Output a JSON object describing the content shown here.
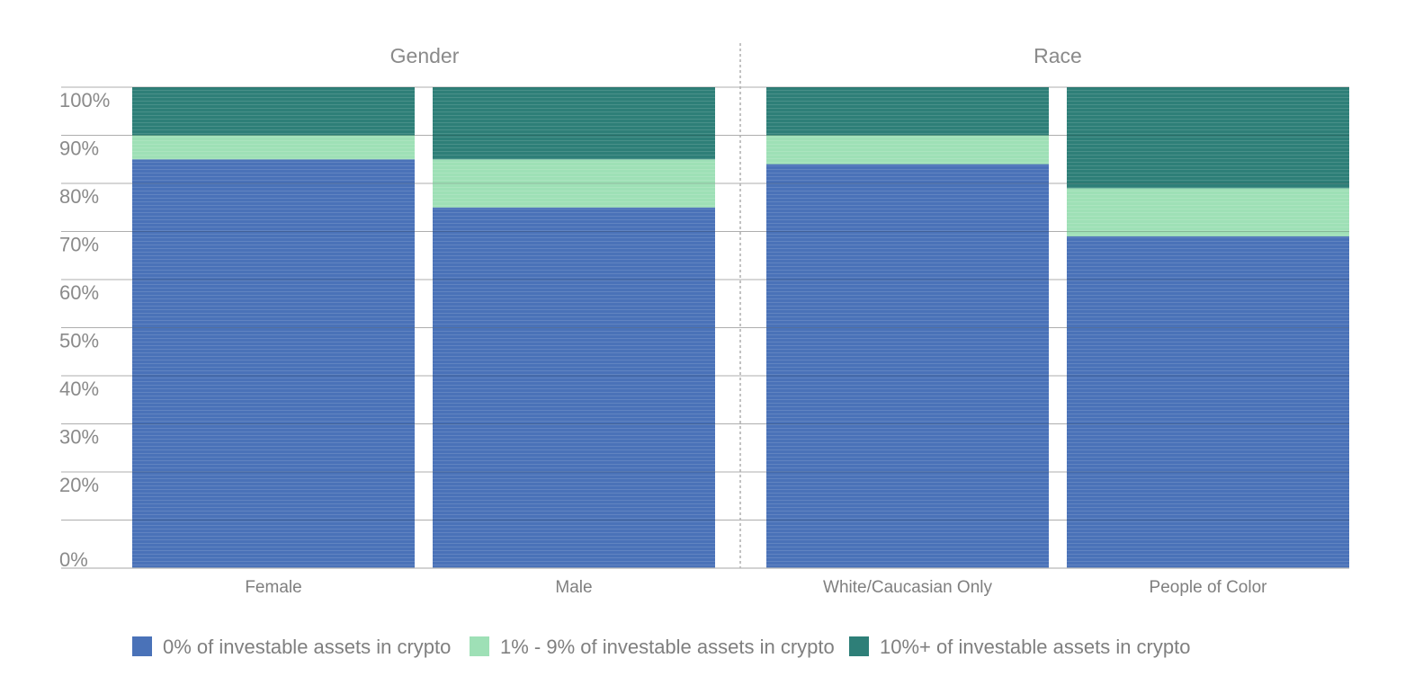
{
  "chart_data": {
    "type": "bar",
    "stacked": true,
    "groups": [
      {
        "label": "Gender",
        "categories": [
          "Female",
          "Male"
        ]
      },
      {
        "label": "Race",
        "categories": [
          "White/Caucasian Only",
          "People of Color"
        ]
      }
    ],
    "categories": [
      "Female",
      "Male",
      "White/Caucasian Only",
      "People of Color"
    ],
    "series": [
      {
        "name": "0% of investable assets in crypto",
        "color": "#4a72b8",
        "values": [
          85,
          75,
          84,
          69
        ]
      },
      {
        "name": "1% - 9% of investable assets in crypto",
        "color": "#9ee0b6",
        "values": [
          5,
          10,
          6,
          10
        ]
      },
      {
        "name": "10%+ of investable assets in crypto",
        "color": "#2e7f78",
        "values": [
          10,
          15,
          10,
          21
        ]
      }
    ],
    "y_ticks": [
      {
        "value": 0,
        "label": "0%"
      },
      {
        "value": 20,
        "label": "20%"
      },
      {
        "value": 30,
        "label": "30%"
      },
      {
        "value": 40,
        "label": "40%"
      },
      {
        "value": 50,
        "label": "50%"
      },
      {
        "value": 60,
        "label": "60%"
      },
      {
        "value": 70,
        "label": "70%"
      },
      {
        "value": 80,
        "label": "80%"
      },
      {
        "value": 90,
        "label": "90%"
      },
      {
        "value": 100,
        "label": "100%"
      }
    ],
    "gridlines": [
      10,
      20,
      30,
      40,
      50,
      60,
      70,
      80,
      90,
      100
    ],
    "ylim": [
      0,
      100
    ],
    "grid": true,
    "legend_position": "bottom",
    "title": "",
    "xlabel": "",
    "ylabel": ""
  }
}
